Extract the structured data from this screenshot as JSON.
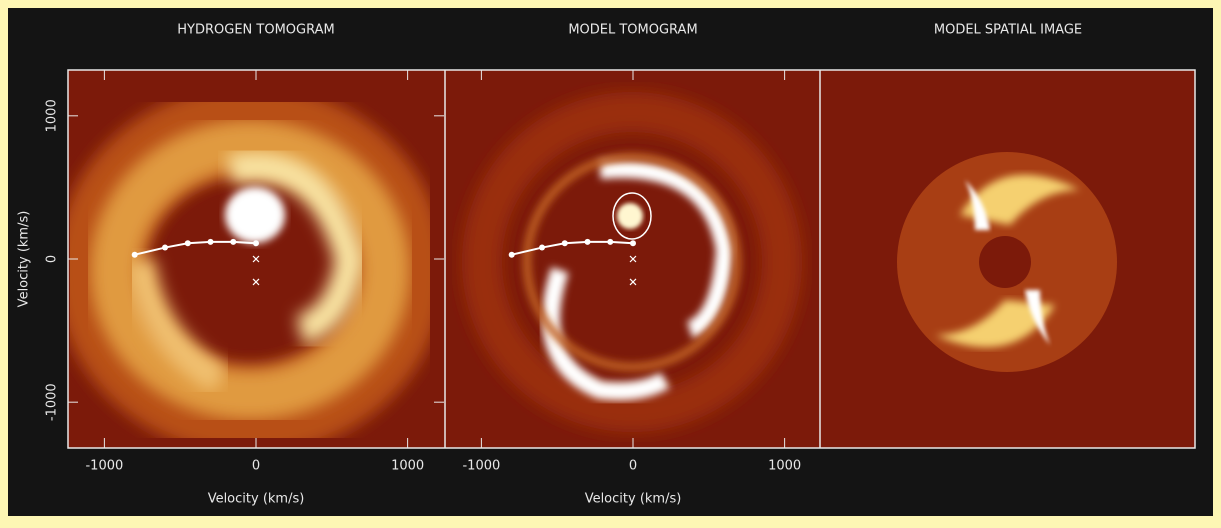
{
  "chart_data": [
    {
      "type": "image",
      "title": "HYDROGEN TOMOGRAM",
      "xlabel": "Velocity (km/s)",
      "ylabel": "Velocity (km/s)",
      "xlim": [
        -1240,
        1240
      ],
      "xticks": [
        -1000,
        0,
        1000
      ],
      "ylim": [
        -1320,
        1320
      ],
      "yticks": [
        -1000,
        0,
        1000
      ],
      "trajectory": {
        "x": [
          -800,
          -600,
          -450,
          -300,
          -150,
          0
        ],
        "y": [
          30,
          80,
          110,
          120,
          120,
          110
        ]
      },
      "markers": {
        "x": [
          0,
          0
        ],
        "y": [
          0,
          -160
        ]
      }
    },
    {
      "type": "image",
      "title": "MODEL TOMOGRAM",
      "xlabel": "Velocity (km/s)",
      "xlim": [
        -1240,
        1240
      ],
      "xticks": [
        -1000,
        0,
        1000
      ],
      "ylim": [
        -1320,
        1320
      ],
      "trajectory": {
        "x": [
          -800,
          -600,
          -450,
          -300,
          -150,
          0
        ],
        "y": [
          30,
          80,
          110,
          120,
          120,
          110
        ]
      },
      "markers": {
        "x": [
          0,
          0
        ],
        "y": [
          0,
          -160
        ]
      }
    },
    {
      "type": "image",
      "title": "MODEL SPATIAL IMAGE"
    }
  ]
}
